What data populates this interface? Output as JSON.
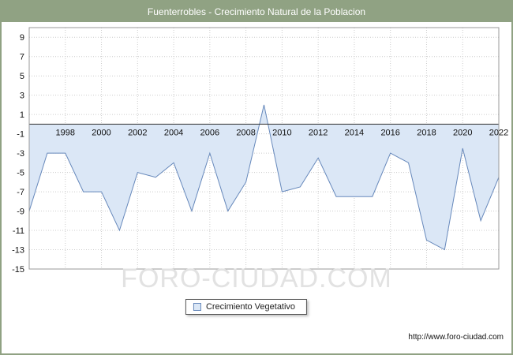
{
  "header": {
    "title": "Fuenterrobles - Crecimiento Natural de la Poblacion"
  },
  "legend": {
    "label": "Crecimiento Vegetativo"
  },
  "watermark": {
    "text": "FORO-CIUDAD.COM"
  },
  "footer": {
    "url": "http://www.foro-ciudad.com"
  },
  "colors": {
    "header_bg": "#90a283",
    "page_border": "#90a283",
    "line": "#6688bb",
    "area": "#dbe7f6",
    "grid": "#cccccc",
    "axis": "#999999",
    "zero_line": "#333333",
    "tick_text": "#111111",
    "watermark": "#e2e2e2"
  },
  "chart_data": {
    "type": "area",
    "title": "Fuenterrobles - Crecimiento Natural de la Poblacion",
    "series_name": "Crecimiento Vegetativo",
    "x": [
      1996,
      1997,
      1998,
      1999,
      2000,
      2001,
      2002,
      2003,
      2004,
      2005,
      2006,
      2007,
      2008,
      2009,
      2010,
      2011,
      2012,
      2013,
      2014,
      2015,
      2016,
      2017,
      2018,
      2019,
      2020,
      2021,
      2022
    ],
    "values": [
      -9,
      -3,
      -3,
      -7,
      -7,
      -11,
      -5,
      -5.5,
      -4,
      -9,
      -3,
      -9,
      -6,
      2,
      -7,
      -6.5,
      -3.5,
      -7.5,
      -7.5,
      -7.5,
      -3,
      -4,
      -12,
      -13,
      -2.5,
      -10,
      -5.5
    ],
    "xticks": [
      1998,
      2000,
      2002,
      2004,
      2006,
      2008,
      2010,
      2012,
      2014,
      2016,
      2018,
      2020,
      2022
    ],
    "yticks": [
      9,
      7,
      5,
      3,
      1,
      -1,
      -3,
      -5,
      -7,
      -9,
      -11,
      -13,
      -15
    ],
    "xlim": [
      1996,
      2022
    ],
    "ylim": [
      -15,
      10
    ],
    "baseline": 0,
    "grid": true,
    "legend_position": "bottom"
  }
}
